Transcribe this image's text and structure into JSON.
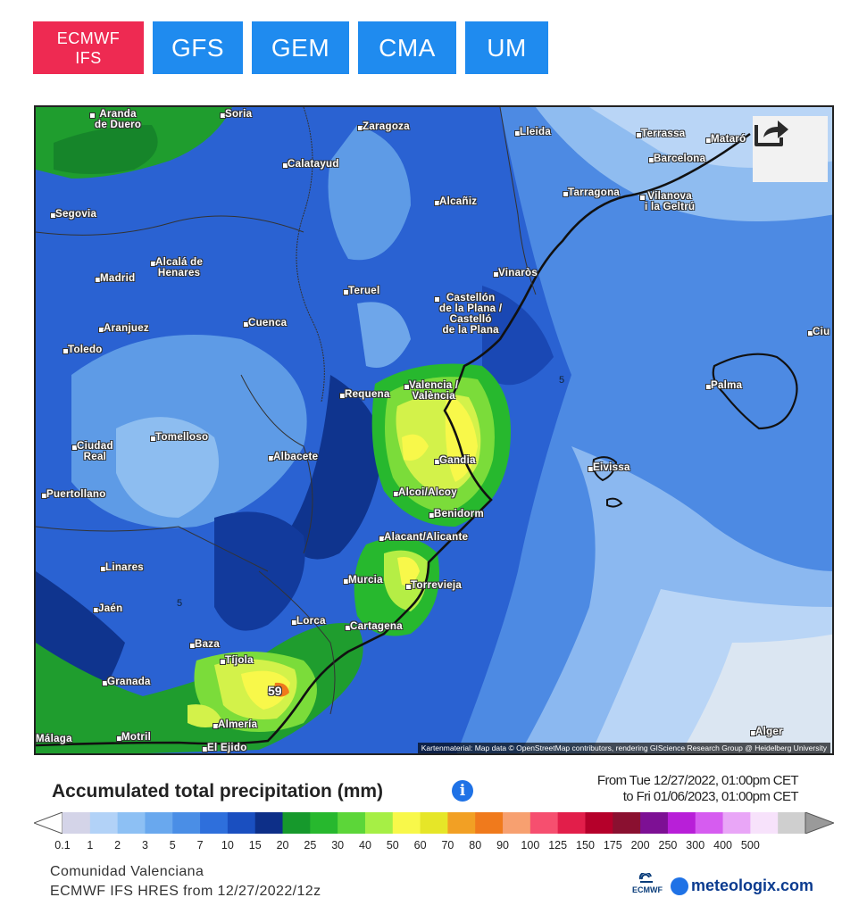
{
  "tabs": [
    {
      "label": "ECMWF\nIFS",
      "active": true
    },
    {
      "label": "GFS",
      "active": false
    },
    {
      "label": "GEM",
      "active": false
    },
    {
      "label": "CMA",
      "active": false
    },
    {
      "label": "UM",
      "active": false
    }
  ],
  "map": {
    "cities": [
      {
        "name": "Aranda\nde Duero"
      },
      {
        "name": "Soria"
      },
      {
        "name": "Zaragoza"
      },
      {
        "name": "Lleida"
      },
      {
        "name": "Terrassa"
      },
      {
        "name": "Mataró"
      },
      {
        "name": "Barcelona"
      },
      {
        "name": "Calatayud"
      },
      {
        "name": "Tarragona"
      },
      {
        "name": "Vilanova\ni la Geltrú"
      },
      {
        "name": "Segovia"
      },
      {
        "name": "Alcañiz"
      },
      {
        "name": "Alcalá de\nHenares"
      },
      {
        "name": "Madrid"
      },
      {
        "name": "Teruel"
      },
      {
        "name": "Vinaròs"
      },
      {
        "name": "Castellón\nde la Plana /\nCastelló\nde la Plana"
      },
      {
        "name": "Aranjuez"
      },
      {
        "name": "Cuenca"
      },
      {
        "name": "Toledo"
      },
      {
        "name": "Valencia /\nValència"
      },
      {
        "name": "Requena"
      },
      {
        "name": "Palma"
      },
      {
        "name": "Tomelloso"
      },
      {
        "name": "Ciudad\nReal"
      },
      {
        "name": "Albacete"
      },
      {
        "name": "Gandia"
      },
      {
        "name": "Eivissa"
      },
      {
        "name": "Alcoi/Alcoy"
      },
      {
        "name": "Puertollano"
      },
      {
        "name": "Benidorm"
      },
      {
        "name": "Alacant/Alicante"
      },
      {
        "name": "Linares"
      },
      {
        "name": "Murcia"
      },
      {
        "name": "Torrevieja"
      },
      {
        "name": "Jaén"
      },
      {
        "name": "Lorca"
      },
      {
        "name": "Cartagena"
      },
      {
        "name": "Baza"
      },
      {
        "name": "Tíjola"
      },
      {
        "name": "Granada"
      },
      {
        "name": "Almería"
      },
      {
        "name": "Motril"
      },
      {
        "name": "El Ejido"
      },
      {
        "name": "Málaga"
      },
      {
        "name": "Alger"
      },
      {
        "name": "Ciu"
      }
    ],
    "max_value": "59",
    "contour_labels": [
      "5",
      "5"
    ],
    "attribution": "Kartenmaterial: Map data © OpenStreetMap contributors, rendering GIScience Research Group @ Heidelberg University",
    "share_icon": "share-icon"
  },
  "legend": {
    "title": "Accumulated total precipitation (mm)",
    "info_icon": "info-icon",
    "period_line1": "From Tue 12/27/2022, 01:00pm CET",
    "period_line2": "to Fri 01/06/2023, 01:00pm CET",
    "ticks": [
      "0.1",
      "1",
      "2",
      "3",
      "5",
      "7",
      "10",
      "15",
      "20",
      "25",
      "30",
      "40",
      "50",
      "60",
      "70",
      "80",
      "90",
      "100",
      "125",
      "150",
      "175",
      "200",
      "250",
      "300",
      "400",
      "500"
    ],
    "colors": [
      "#d4d4e8",
      "#b2d2f7",
      "#8dc0f4",
      "#69a8ee",
      "#4a8ee6",
      "#2e6fdc",
      "#1a4fc0",
      "#0d2f88",
      "#16992c",
      "#27b82e",
      "#5cd639",
      "#a6ef45",
      "#f8f84a",
      "#e6e628",
      "#f2a024",
      "#f07a1c",
      "#f7a070",
      "#f64f6f",
      "#e21e4a",
      "#b5002a",
      "#8a1030",
      "#7d1094",
      "#b81fd8",
      "#d65cf0",
      "#e9a6f7",
      "#f7e2fb",
      "#cfcfcf"
    ]
  },
  "footer": {
    "region": "Comunidad Valenciana",
    "model": "ECMWF IFS HRES from 12/27/2022/12z",
    "ecmwf_label": "ECMWF",
    "brand": "meteologix.com"
  }
}
